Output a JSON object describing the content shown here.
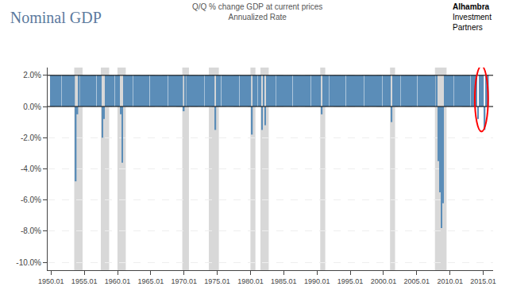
{
  "chart_data": {
    "type": "bar",
    "title": "Nominal GDP",
    "subtitle": [
      "Q/Q % change GDP at current prices",
      "Annualized Rate"
    ],
    "annotations": [
      "Alhambra",
      "Investment",
      "Partners"
    ],
    "color": "#5b8db8",
    "grid": true,
    "xlim": [
      1949.5,
      2016.5
    ],
    "xticks": [
      1950.01,
      1955.01,
      1960.01,
      1965.01,
      1970.01,
      1975.01,
      1980.01,
      1985.01,
      1990.01,
      1995.01,
      2000.01,
      2005.01,
      2010.01,
      2015.01
    ],
    "ylim": [
      -10.5,
      2.5
    ],
    "yticks": [
      {
        "value": 2.0,
        "label": "2.0%"
      },
      {
        "value": 0.0,
        "label": "0.0%"
      },
      {
        "value": -2.0,
        "label": "-2.0%"
      },
      {
        "value": -4.0,
        "label": "-4.0%"
      },
      {
        "value": -6.0,
        "label": "-6.0%"
      },
      {
        "value": -8.0,
        "label": "-8.0%"
      },
      {
        "value": -10.0,
        "label": "-10.0%"
      }
    ],
    "hlines": [
      0.0,
      2.0
    ],
    "recession_bands": [
      [
        1953.5,
        1954.75
      ],
      [
        1957.5,
        1958.75
      ],
      [
        1960.0,
        1961.25
      ],
      [
        1969.75,
        1970.75
      ],
      [
        1973.75,
        1975.25
      ],
      [
        1980.0,
        1980.75
      ],
      [
        1981.5,
        1982.75
      ],
      [
        1990.5,
        1991.25
      ],
      [
        2001.0,
        2001.75
      ],
      [
        2007.75,
        2009.5
      ]
    ],
    "recession_color": "#d8d8d8",
    "ellipse": {
      "x": 2014.75,
      "y": 0.5,
      "width": 2.0,
      "height": 4.2,
      "color": "red"
    },
    "x": [
      1950.0,
      1950.25,
      1950.5,
      1950.75,
      1951.0,
      1951.25,
      1951.5,
      1951.75,
      1952.0,
      1952.25,
      1952.5,
      1952.75,
      1953.0,
      1953.25,
      1953.5,
      1953.75,
      1954.0,
      1954.25,
      1954.5,
      1954.75,
      1955.0,
      1955.25,
      1955.5,
      1955.75,
      1956.0,
      1956.25,
      1956.5,
      1956.75,
      1957.0,
      1957.25,
      1957.5,
      1957.75,
      1958.0,
      1958.25,
      1958.5,
      1958.75,
      1959.0,
      1959.25,
      1959.5,
      1959.75,
      1960.0,
      1960.25,
      1960.5,
      1960.75,
      1961.0,
      1961.25,
      1961.5,
      1961.75,
      1962.0,
      1962.25,
      1962.5,
      1962.75,
      1963.0,
      1963.25,
      1963.5,
      1963.75,
      1964.0,
      1964.25,
      1964.5,
      1964.75,
      1965.0,
      1965.25,
      1965.5,
      1965.75,
      1966.0,
      1966.25,
      1966.5,
      1966.75,
      1967.0,
      1967.25,
      1967.5,
      1967.75,
      1968.0,
      1968.25,
      1968.5,
      1968.75,
      1969.0,
      1969.25,
      1969.5,
      1969.75,
      1970.0,
      1970.25,
      1970.5,
      1970.75,
      1971.0,
      1971.25,
      1971.5,
      1971.75,
      1972.0,
      1972.25,
      1972.5,
      1972.75,
      1973.0,
      1973.25,
      1973.5,
      1973.75,
      1974.0,
      1974.25,
      1974.5,
      1974.75,
      1975.0,
      1975.25,
      1975.5,
      1975.75,
      1976.0,
      1976.25,
      1976.5,
      1976.75,
      1977.0,
      1977.25,
      1977.5,
      1977.75,
      1978.0,
      1978.25,
      1978.5,
      1978.75,
      1979.0,
      1979.25,
      1979.5,
      1979.75,
      1980.0,
      1980.25,
      1980.5,
      1980.75,
      1981.0,
      1981.25,
      1981.5,
      1981.75,
      1982.0,
      1982.25,
      1982.5,
      1982.75,
      1983.0,
      1983.25,
      1983.5,
      1983.75,
      1984.0,
      1984.25,
      1984.5,
      1984.75,
      1985.0,
      1985.25,
      1985.5,
      1985.75,
      1986.0,
      1986.25,
      1986.5,
      1986.75,
      1987.0,
      1987.25,
      1987.5,
      1987.75,
      1988.0,
      1988.25,
      1988.5,
      1988.75,
      1989.0,
      1989.25,
      1989.5,
      1989.75,
      1990.0,
      1990.25,
      1990.5,
      1990.75,
      1991.0,
      1991.25,
      1991.5,
      1991.75,
      1992.0,
      1992.25,
      1992.5,
      1992.75,
      1993.0,
      1993.25,
      1993.5,
      1993.75,
      1994.0,
      1994.25,
      1994.5,
      1994.75,
      1995.0,
      1995.25,
      1995.5,
      1995.75,
      1996.0,
      1996.25,
      1996.5,
      1996.75,
      1997.0,
      1997.25,
      1997.5,
      1997.75,
      1998.0,
      1998.25,
      1998.5,
      1998.75,
      1999.0,
      1999.25,
      1999.5,
      1999.75,
      2000.0,
      2000.25,
      2000.5,
      2000.75,
      2001.0,
      2001.25,
      2001.5,
      2001.75,
      2002.0,
      2002.25,
      2002.5,
      2002.75,
      2003.0,
      2003.25,
      2003.5,
      2003.75,
      2004.0,
      2004.25,
      2004.5,
      2004.75,
      2005.0,
      2005.25,
      2005.5,
      2005.75,
      2006.0,
      2006.25,
      2006.5,
      2006.75,
      2007.0,
      2007.25,
      2007.5,
      2007.75,
      2008.0,
      2008.25,
      2008.5,
      2008.75,
      2009.0,
      2009.25,
      2009.5,
      2009.75,
      2010.0,
      2010.25,
      2010.5,
      2010.75,
      2011.0,
      2011.25,
      2011.5,
      2011.75,
      2012.0,
      2012.25,
      2012.5,
      2012.75,
      2013.0,
      2013.25,
      2013.5,
      2013.75,
      2014.0,
      2014.25,
      2014.5,
      2014.75,
      2015.0,
      2015.25,
      2015.5,
      2015.75
    ],
    "values": [
      2.0,
      2.0,
      2.0,
      2.0,
      2.0,
      2.0,
      2.0,
      2.0,
      2.0,
      2.0,
      2.0,
      2.0,
      2.0,
      2.0,
      2.0,
      -4.8,
      -0.5,
      2.0,
      2.0,
      2.0,
      2.0,
      2.0,
      2.0,
      2.0,
      2.0,
      2.0,
      2.0,
      2.0,
      2.0,
      2.0,
      2.0,
      -2.0,
      -0.8,
      2.0,
      2.0,
      2.0,
      2.0,
      2.0,
      2.0,
      2.0,
      2.0,
      2.0,
      -0.5,
      -3.6,
      2.0,
      2.0,
      2.0,
      2.0,
      2.0,
      2.0,
      2.0,
      2.0,
      2.0,
      2.0,
      2.0,
      2.0,
      2.0,
      2.0,
      2.0,
      2.0,
      2.0,
      2.0,
      2.0,
      2.0,
      2.0,
      2.0,
      2.0,
      2.0,
      2.0,
      2.0,
      2.0,
      2.0,
      2.0,
      2.0,
      2.0,
      2.0,
      2.0,
      2.0,
      2.0,
      2.0,
      -0.3,
      2.0,
      2.0,
      2.0,
      2.0,
      2.0,
      2.0,
      2.0,
      2.0,
      2.0,
      2.0,
      2.0,
      2.0,
      2.0,
      2.0,
      2.0,
      2.0,
      2.0,
      2.0,
      -1.5,
      2.0,
      2.0,
      2.0,
      2.0,
      2.0,
      2.0,
      2.0,
      2.0,
      2.0,
      2.0,
      2.0,
      2.0,
      2.0,
      2.0,
      2.0,
      2.0,
      2.0,
      2.0,
      2.0,
      2.0,
      2.0,
      -1.8,
      2.0,
      2.0,
      2.0,
      2.0,
      2.0,
      -1.5,
      2.0,
      -1.2,
      2.0,
      2.0,
      2.0,
      2.0,
      2.0,
      2.0,
      2.0,
      2.0,
      2.0,
      2.0,
      2.0,
      2.0,
      2.0,
      2.0,
      2.0,
      2.0,
      2.0,
      2.0,
      2.0,
      2.0,
      2.0,
      2.0,
      2.0,
      2.0,
      2.0,
      2.0,
      2.0,
      2.0,
      2.0,
      2.0,
      2.0,
      2.0,
      2.0,
      -0.5,
      2.0,
      2.0,
      2.0,
      2.0,
      2.0,
      2.0,
      2.0,
      2.0,
      2.0,
      2.0,
      2.0,
      2.0,
      2.0,
      2.0,
      2.0,
      2.0,
      2.0,
      2.0,
      2.0,
      2.0,
      2.0,
      2.0,
      2.0,
      2.0,
      2.0,
      2.0,
      2.0,
      2.0,
      2.0,
      2.0,
      2.0,
      2.0,
      2.0,
      2.0,
      2.0,
      2.0,
      2.0,
      2.0,
      2.0,
      2.0,
      2.0,
      -1.0,
      2.0,
      2.0,
      2.0,
      2.0,
      2.0,
      2.0,
      2.0,
      2.0,
      2.0,
      2.0,
      2.0,
      2.0,
      2.0,
      2.0,
      2.0,
      2.0,
      2.0,
      2.0,
      2.0,
      2.0,
      2.0,
      2.0,
      2.0,
      2.0,
      2.0,
      2.0,
      2.0,
      -3.5,
      -5.5,
      -7.8,
      -6.2,
      2.0,
      2.0,
      2.0,
      2.0,
      2.0,
      2.0,
      2.0,
      2.0,
      2.0,
      2.0,
      2.0,
      2.0,
      2.0,
      2.0,
      2.0,
      2.0,
      2.0,
      2.0,
      2.0,
      2.0,
      -0.8,
      2.0,
      2.0,
      2.0,
      -1.5,
      2.0,
      2.0
    ]
  }
}
